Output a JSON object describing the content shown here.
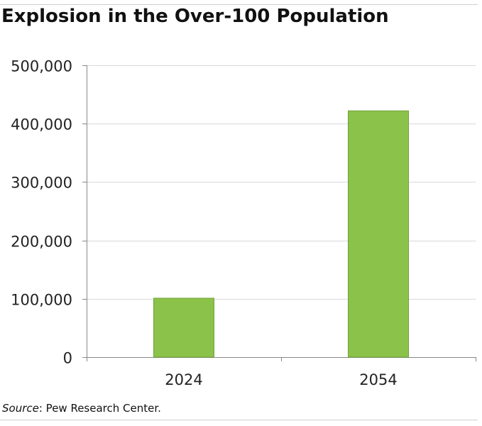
{
  "title": "Explosion in the Over-100 Population",
  "source_label": "Source",
  "source_text": ": Pew Research Center.",
  "chart_data": {
    "type": "bar",
    "title": "Explosion in the Over-100 Population",
    "categories": [
      "2024",
      "2054"
    ],
    "values": [
      101000,
      422000
    ],
    "xlabel": "",
    "ylabel": "",
    "ylim": [
      0,
      500000
    ],
    "yticks": [
      0,
      100000,
      200000,
      300000,
      400000,
      500000
    ],
    "ytick_labels": [
      "0",
      "100,000",
      "200,000",
      "300,000",
      "400,000",
      "500,000"
    ],
    "grid": true,
    "legend": "none",
    "bar_color": "#8bc34a",
    "bar_edge_color": "#6f9e3a",
    "grid_color": "#d9d9d9"
  }
}
